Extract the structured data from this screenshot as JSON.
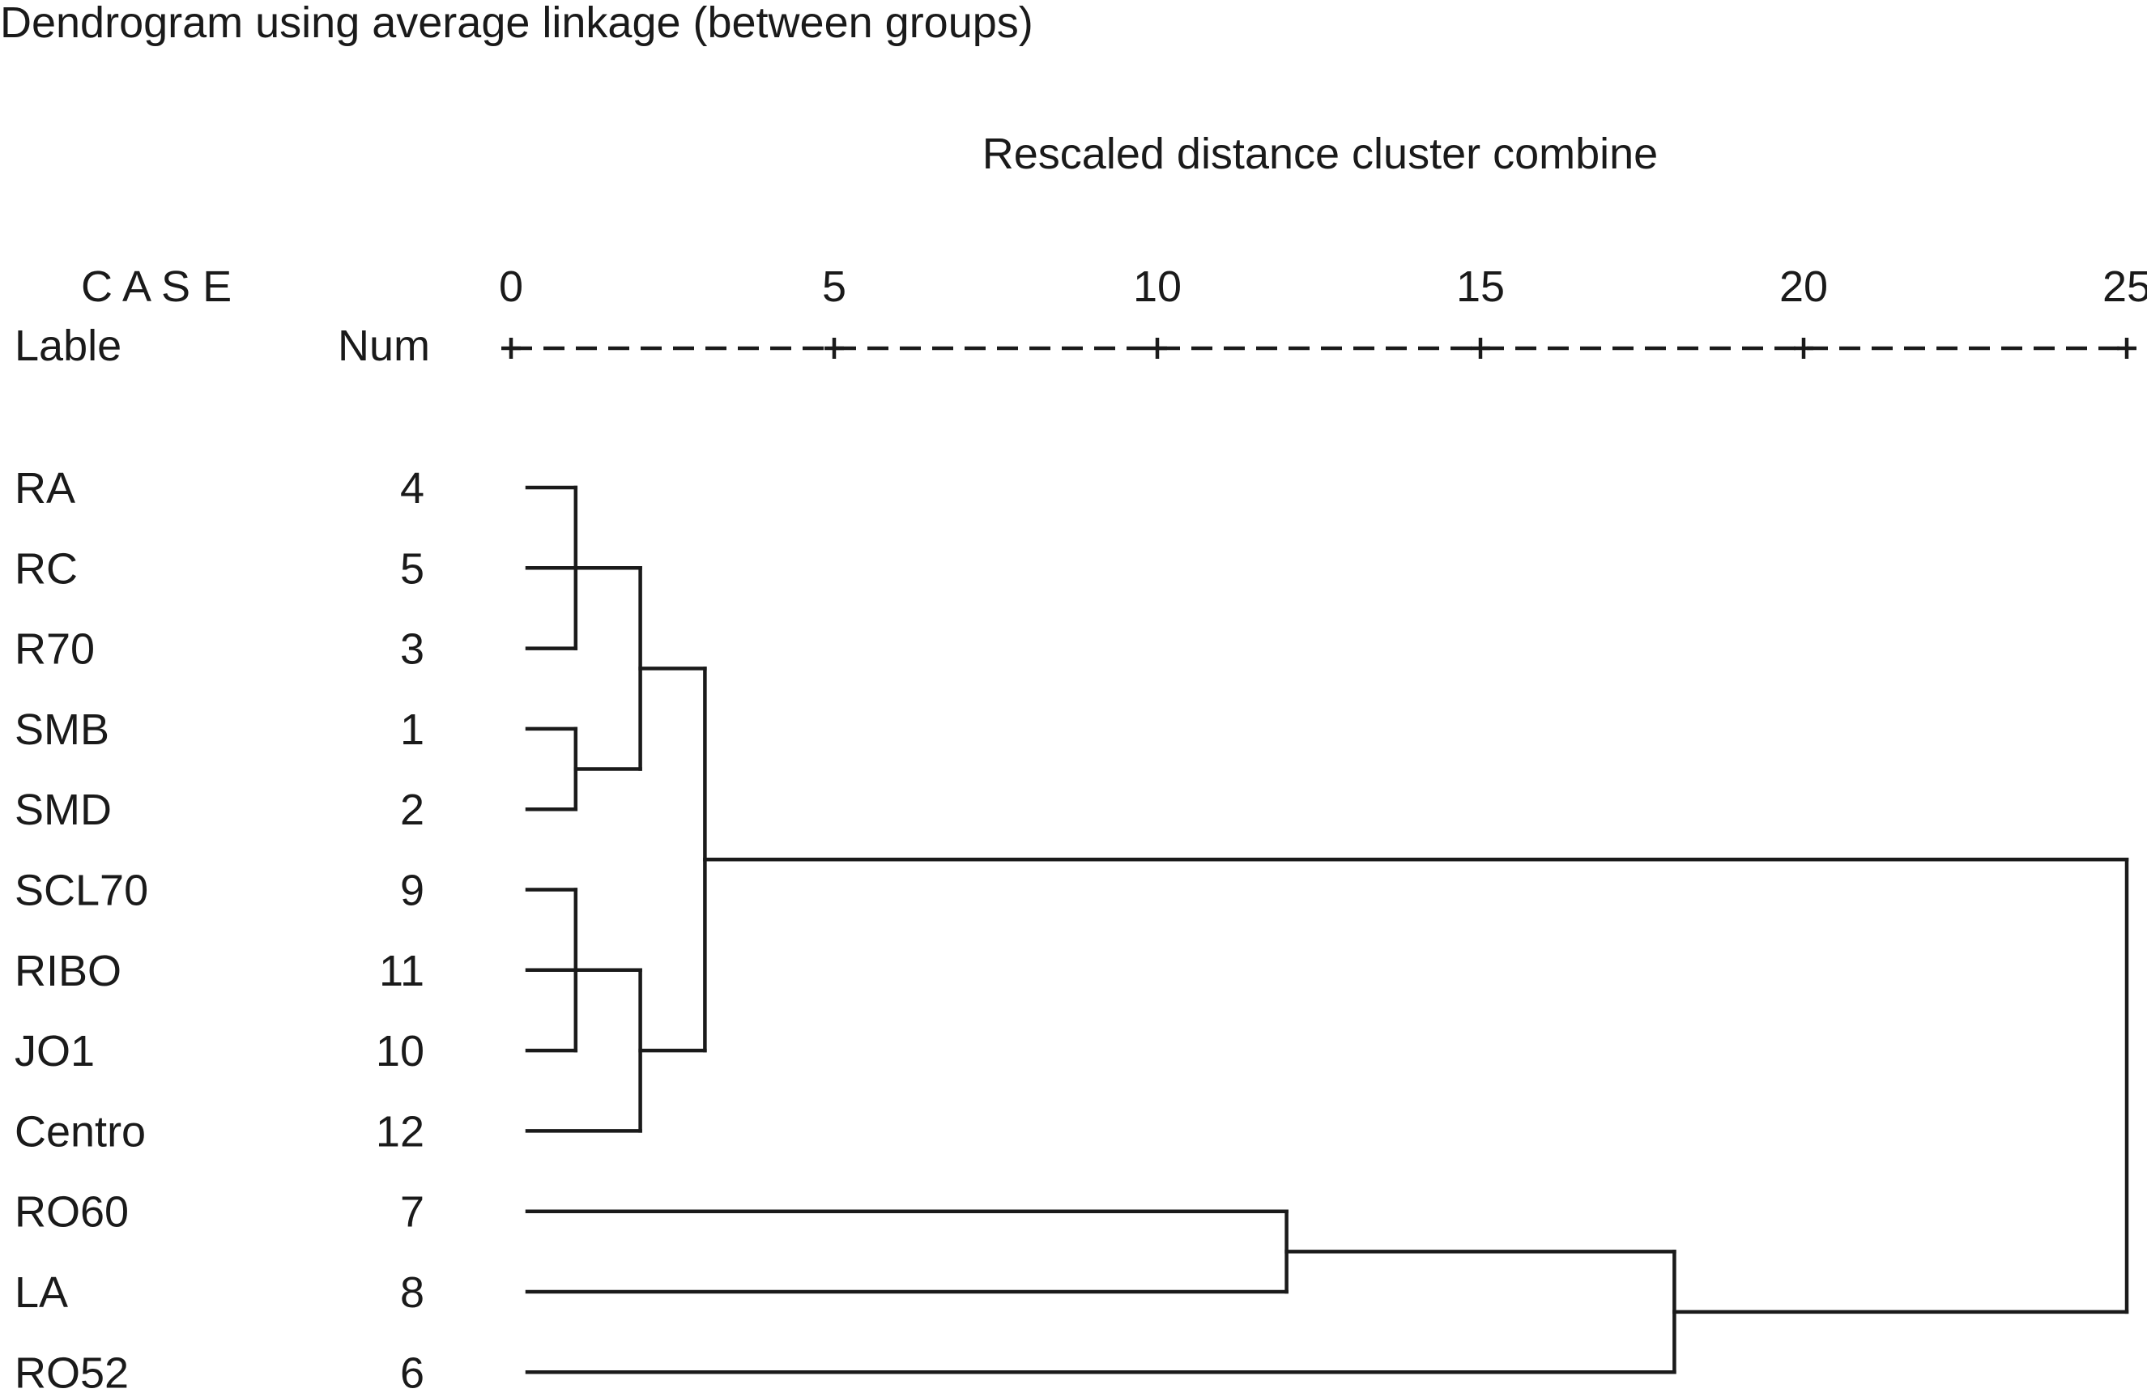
{
  "title": "Dendrogram using average linkage (between groups)",
  "axis_title": "Rescaled distance cluster combine",
  "header": {
    "case": "C A S E",
    "label": "Lable",
    "num": "Num"
  },
  "chart_data": {
    "type": "dendrogram",
    "title": "Dendrogram using average linkage (between groups)",
    "xlabel": "Rescaled distance cluster combine",
    "xlim": [
      0,
      25
    ],
    "ticks": [
      "0",
      "5",
      "10",
      "15",
      "20",
      "25"
    ],
    "tick_values": [
      0,
      5,
      10,
      15,
      20,
      25
    ],
    "leaves": [
      {
        "label": "RA",
        "num": "4"
      },
      {
        "label": "RC",
        "num": "5"
      },
      {
        "label": "R70",
        "num": "3"
      },
      {
        "label": "SMB",
        "num": "1"
      },
      {
        "label": "SMD",
        "num": "2"
      },
      {
        "label": "SCL70",
        "num": "9"
      },
      {
        "label": "RIBO",
        "num": "11"
      },
      {
        "label": "JO1",
        "num": "10"
      },
      {
        "label": "Centro",
        "num": "12"
      },
      {
        "label": "RO60",
        "num": "7"
      },
      {
        "label": "LA",
        "num": "8"
      },
      {
        "label": "RO52",
        "num": "6"
      }
    ],
    "merges": [
      {
        "id": "A",
        "children": [
          0,
          1,
          2
        ],
        "distance": 1
      },
      {
        "id": "B",
        "children": [
          3,
          4
        ],
        "distance": 1
      },
      {
        "id": "C",
        "children": [
          5,
          6,
          7
        ],
        "distance": 1
      },
      {
        "id": "D",
        "children": [
          "A",
          "B"
        ],
        "distance": 2
      },
      {
        "id": "E",
        "children": [
          "C",
          8
        ],
        "distance": 2
      },
      {
        "id": "F",
        "children": [
          "D",
          "E"
        ],
        "distance": 3
      },
      {
        "id": "G",
        "children": [
          9,
          10
        ],
        "distance": 12
      },
      {
        "id": "H",
        "children": [
          "G",
          11
        ],
        "distance": 18
      },
      {
        "id": "I",
        "children": [
          "F",
          "H"
        ],
        "distance": 25
      }
    ]
  }
}
